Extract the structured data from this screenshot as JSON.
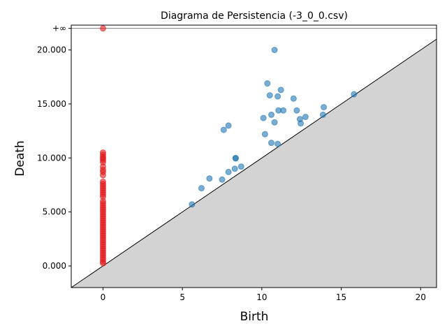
{
  "chart_data": {
    "type": "scatter",
    "title": "Diagrama de Persistencia (-3_0_0.csv)",
    "xlabel": "Birth",
    "ylabel": "Death",
    "xlim": [
      -2,
      21
    ],
    "ylim": [
      -2000,
      22300
    ],
    "infinity_label": "+∞",
    "infinity_death": 22000,
    "x_ticks": [
      {
        "value": 0,
        "label": "0"
      },
      {
        "value": 5,
        "label": "5"
      },
      {
        "value": 10,
        "label": "10"
      },
      {
        "value": 15,
        "label": "15"
      },
      {
        "value": 20,
        "label": "20"
      }
    ],
    "y_ticks": [
      {
        "value": 0,
        "label": "0.000"
      },
      {
        "value": 5000,
        "label": "5.000"
      },
      {
        "value": 10000,
        "label": "10.000"
      },
      {
        "value": 15000,
        "label": "15.000"
      },
      {
        "value": 20000,
        "label": "20.000"
      }
    ],
    "colors": {
      "h0": "#e31a1c",
      "h1": "#1f77b4",
      "diagonal_fill": "#d3d3d3",
      "infinity_line": "#7f7f7f"
    },
    "series": [
      {
        "color_key": "h0",
        "points": [
          [
            0,
            22000
          ],
          [
            0,
            10500
          ],
          [
            0,
            10300
          ],
          [
            0,
            10100
          ],
          [
            0,
            9950
          ],
          [
            0,
            9800
          ],
          [
            0,
            9600
          ],
          [
            0,
            9200
          ],
          [
            0,
            8900
          ],
          [
            0,
            8700
          ],
          [
            0,
            8400
          ],
          [
            0,
            7800
          ],
          [
            0,
            7600
          ],
          [
            0,
            7400
          ],
          [
            0,
            7200
          ],
          [
            0,
            7000
          ],
          [
            0,
            6800
          ],
          [
            0,
            6600
          ],
          [
            0,
            6400
          ],
          [
            0,
            6000
          ],
          [
            0,
            5800
          ],
          [
            0,
            5600
          ],
          [
            0,
            5400
          ],
          [
            0,
            5200
          ],
          [
            0,
            5000
          ],
          [
            0,
            4800
          ],
          [
            0,
            4600
          ],
          [
            0,
            4400
          ],
          [
            0,
            4200
          ],
          [
            0,
            4000
          ],
          [
            0,
            3800
          ],
          [
            0,
            3600
          ],
          [
            0,
            3400
          ],
          [
            0,
            3200
          ],
          [
            0,
            3000
          ],
          [
            0,
            2800
          ],
          [
            0,
            2600
          ],
          [
            0,
            2400
          ],
          [
            0,
            2200
          ],
          [
            0,
            2000
          ],
          [
            0,
            1800
          ],
          [
            0,
            1600
          ],
          [
            0,
            1400
          ],
          [
            0,
            1200
          ],
          [
            0,
            1000
          ],
          [
            0,
            800
          ],
          [
            0,
            600
          ],
          [
            0,
            400
          ],
          [
            0,
            250
          ]
        ]
      },
      {
        "color_key": "h1",
        "points": [
          [
            5.6,
            5700
          ],
          [
            6.2,
            7200
          ],
          [
            6.7,
            8100
          ],
          [
            7.5,
            8000
          ],
          [
            7.6,
            12600
          ],
          [
            7.9,
            13000
          ],
          [
            7.9,
            8700
          ],
          [
            8.3,
            9000
          ],
          [
            8.35,
            9950
          ],
          [
            8.35,
            10000
          ],
          [
            8.7,
            9200
          ],
          [
            10.1,
            13700
          ],
          [
            10.2,
            12200
          ],
          [
            10.35,
            16900
          ],
          [
            10.5,
            15800
          ],
          [
            10.6,
            14000
          ],
          [
            10.6,
            11400
          ],
          [
            10.8,
            20000
          ],
          [
            10.8,
            13300
          ],
          [
            11.0,
            15700
          ],
          [
            11.0,
            11300
          ],
          [
            11.05,
            14400
          ],
          [
            11.2,
            16300
          ],
          [
            11.35,
            14400
          ],
          [
            12.0,
            15500
          ],
          [
            12.2,
            14400
          ],
          [
            12.4,
            13600
          ],
          [
            12.45,
            13200
          ],
          [
            12.75,
            13800
          ],
          [
            13.85,
            14000
          ],
          [
            13.9,
            14700
          ],
          [
            15.8,
            15900
          ]
        ]
      }
    ]
  }
}
